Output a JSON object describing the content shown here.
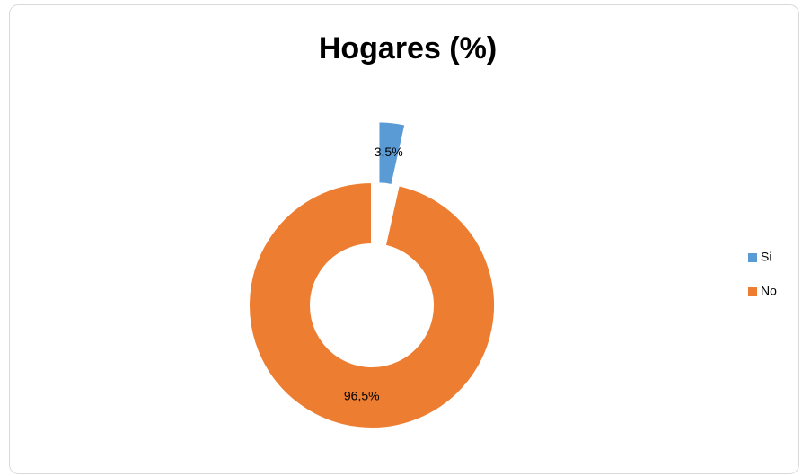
{
  "chart_data": {
    "type": "donut",
    "title": "Hogares (%)",
    "categories": [
      "Si",
      "No"
    ],
    "values": [
      3.5,
      96.5
    ],
    "value_labels": [
      "3,5%",
      "96,5%"
    ],
    "colors": [
      "#5b9bd5",
      "#ed7d31"
    ],
    "legend": "right"
  }
}
